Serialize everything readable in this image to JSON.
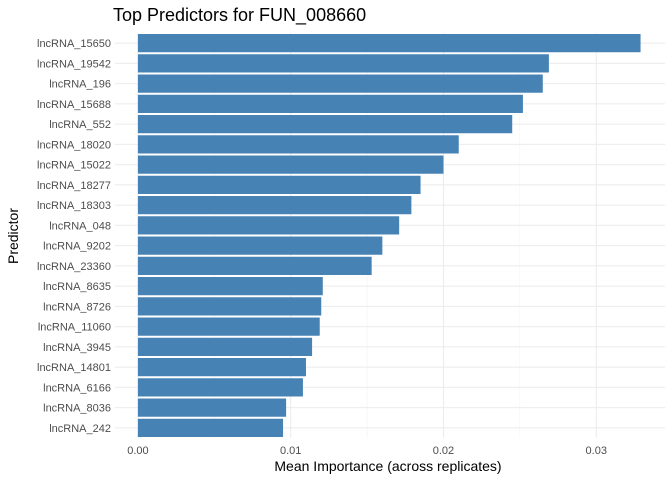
{
  "chart_data": {
    "type": "bar",
    "orientation": "horizontal",
    "title": "Top Predictors for FUN_008660",
    "xlabel": "Mean Importance (across replicates)",
    "ylabel": "Predictor",
    "categories": [
      "lncRNA_15650",
      "lncRNA_19542",
      "lncRNA_196",
      "lncRNA_15688",
      "lncRNA_552",
      "lncRNA_18020",
      "lncRNA_15022",
      "lncRNA_18277",
      "lncRNA_18303",
      "lncRNA_048",
      "lncRNA_9202",
      "lncRNA_23360",
      "lncRNA_8635",
      "lncRNA_8726",
      "lncRNA_11060",
      "lncRNA_3945",
      "lncRNA_14801",
      "lncRNA_6166",
      "lncRNA_8036",
      "lncRNA_242"
    ],
    "values": [
      0.0329,
      0.0269,
      0.0265,
      0.0252,
      0.0245,
      0.021,
      0.02,
      0.0185,
      0.0179,
      0.0171,
      0.016,
      0.0153,
      0.0121,
      0.012,
      0.0119,
      0.0114,
      0.011,
      0.0108,
      0.0097,
      0.0095
    ],
    "xlim": [
      -0.0015,
      0.0345
    ],
    "xticks": [
      0.0,
      0.01,
      0.02,
      0.03
    ],
    "xtick_labels": [
      "0.00",
      "0.01",
      "0.02",
      "0.03"
    ],
    "bar_color": "#4682b4",
    "grid": true,
    "legend": "none"
  }
}
